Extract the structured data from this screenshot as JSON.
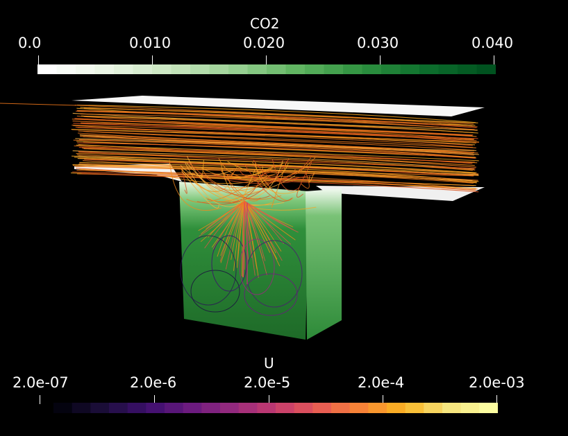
{
  "co2_legend": {
    "title": "CO2",
    "tick_labels": [
      "0.0",
      "0.010",
      "0.020",
      "0.030",
      "0.040"
    ],
    "colors": [
      "#ffffff",
      "#e9f5e4",
      "#c8e6bf",
      "#98d193",
      "#5fb460",
      "#2f9240",
      "#0d6f2d",
      "#00521f"
    ]
  },
  "u_legend": {
    "title": "U",
    "tick_labels": [
      "2.0e-07",
      "2.0e-6",
      "2.0e-5",
      "2.0e-4",
      "2.0e-03"
    ],
    "colors": [
      "#04030f",
      "#1d0f3d",
      "#3d0f6e",
      "#6a1a7f",
      "#962a7e",
      "#c33b6f",
      "#e65a55",
      "#f88436",
      "#fbb421",
      "#f5e27a",
      "#fcfda0"
    ]
  },
  "scene": {
    "background": "#000000",
    "walls_color": "#ffffff",
    "cavity_color": "#1f7a2b",
    "streamline_color": "#f28a1a"
  }
}
